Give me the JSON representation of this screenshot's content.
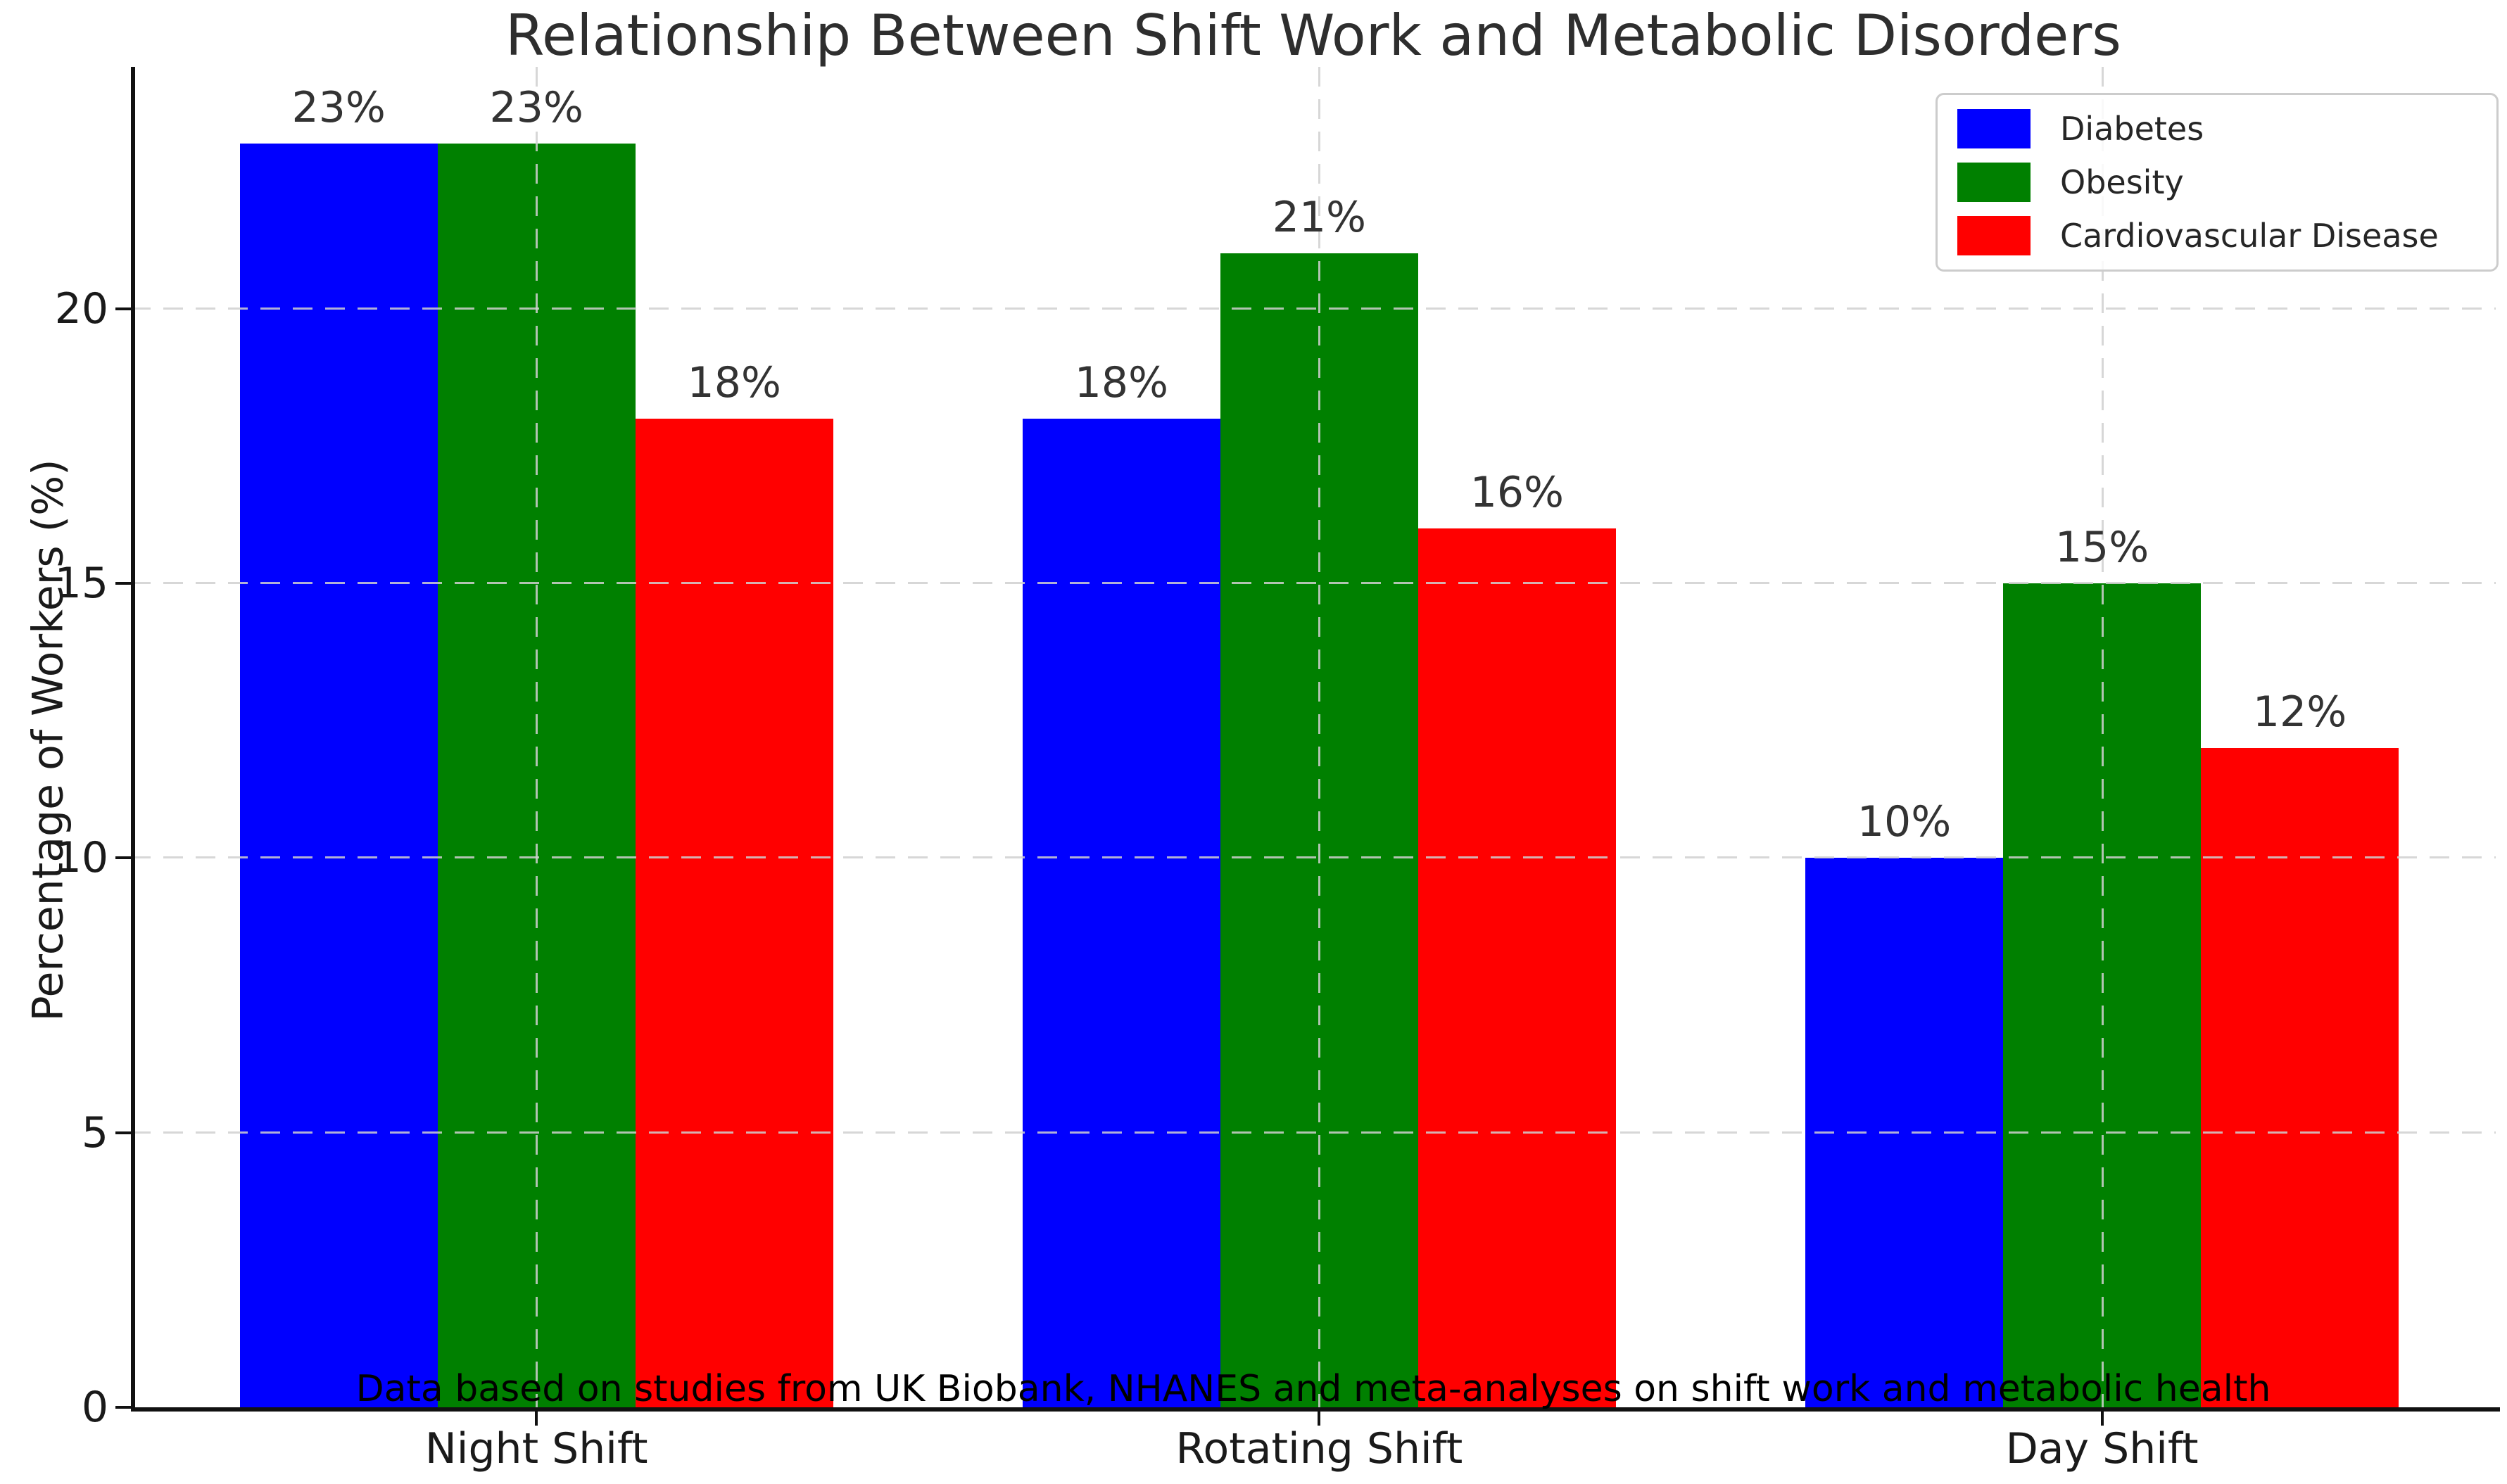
{
  "title": "Relationship Between Shift Work and Metabolic Disorders",
  "footnote": "Data based on studies from UK Biobank, NHANES and meta-analyses on shift work and metabolic health",
  "colors": {
    "diabetes": "#0000ff",
    "obesity": "#008000",
    "cardiovascular": "#ff0000",
    "grid": "#d0d0d0",
    "spine": "#111111",
    "text": "#1a1a1a"
  },
  "chart_data": {
    "type": "bar",
    "title": "Relationship Between Shift Work and Metabolic Disorders",
    "xlabel": "",
    "ylabel": "Percentage of Workers (%)",
    "categories": [
      "Night Shift",
      "Rotating Shift",
      "Day Shift"
    ],
    "series": [
      {
        "name": "Diabetes",
        "color": "#0000ff",
        "values": [
          23,
          18,
          10
        ],
        "labels": [
          "23%",
          "18%",
          "10%"
        ]
      },
      {
        "name": "Obesity",
        "color": "#008000",
        "values": [
          23,
          21,
          15
        ],
        "labels": [
          "23%",
          "21%",
          "15%"
        ]
      },
      {
        "name": "Cardiovascular Disease",
        "color": "#ff0000",
        "values": [
          18,
          16,
          12
        ],
        "labels": [
          "18%",
          "16%",
          "12%"
        ]
      }
    ],
    "ylim": [
      0,
      24.4
    ],
    "yticks": [
      0,
      5,
      10,
      15,
      20
    ],
    "ytick_labels": [
      "0",
      "5",
      "10",
      "15",
      "20"
    ],
    "grid": true,
    "grid_style": "dashed",
    "legend_position": "upper right",
    "annotation": "Data based on studies from UK Biobank, NHANES and meta-analyses on shift work and metabolic health"
  }
}
